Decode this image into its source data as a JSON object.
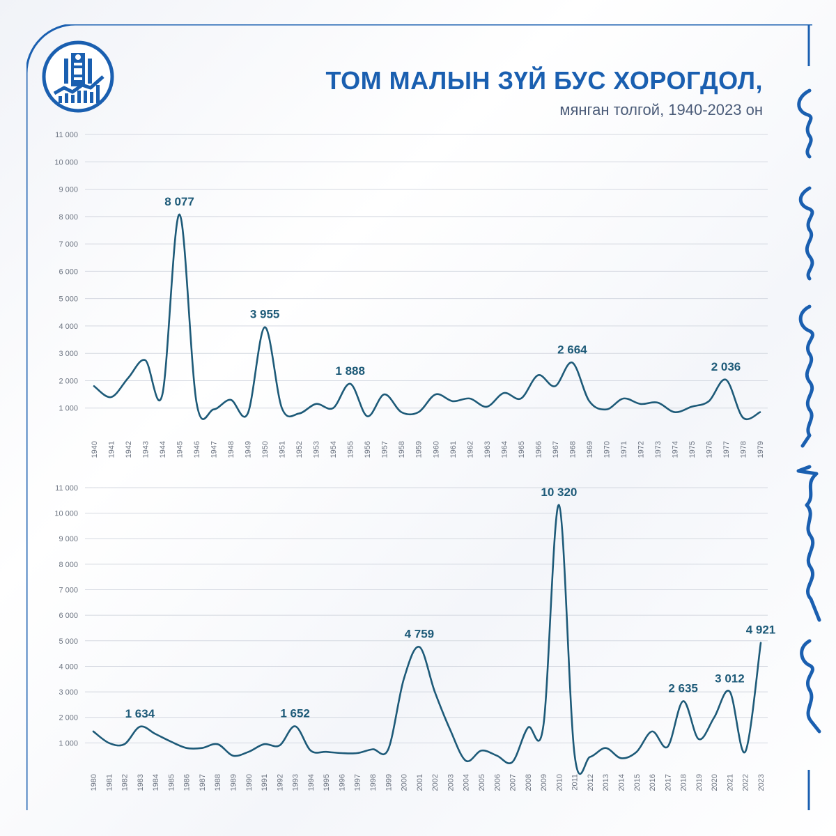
{
  "header": {
    "title": "ТОМ МАЛЫН ЗҮЙ БУС ХОРОГДОЛ,",
    "subtitle": "мянган толгой, 1940-2023 он"
  },
  "logo": {
    "icon": "state-emblem-growth-chart-icon"
  },
  "colors": {
    "line": "#1d5a78",
    "grid": "#d4d8e0",
    "tick": "#6b7380",
    "title": "#1a5fb0",
    "accent": "#1a5fb0"
  },
  "chart_data": [
    {
      "type": "line",
      "x": [
        "1940",
        "1941",
        "1942",
        "1943",
        "1944",
        "1945",
        "1946",
        "1947",
        "1948",
        "1949",
        "1950",
        "1951",
        "1952",
        "1953",
        "1954",
        "1955",
        "1956",
        "1957",
        "1958",
        "1959",
        "1960",
        "1961",
        "1962",
        "1963",
        "1964",
        "1965",
        "1966",
        "1967",
        "1968",
        "1969",
        "1970",
        "1971",
        "1972",
        "1973",
        "1974",
        "1975",
        "1976",
        "1977",
        "1978",
        "1979"
      ],
      "values": [
        1800,
        1400,
        2100,
        2750,
        1500,
        8077,
        1200,
        950,
        1300,
        800,
        3955,
        1000,
        800,
        1150,
        1000,
        1888,
        700,
        1500,
        850,
        850,
        1500,
        1250,
        1350,
        1050,
        1550,
        1350,
        2200,
        1800,
        2664,
        1250,
        950,
        1350,
        1150,
        1200,
        850,
        1050,
        1250,
        2036,
        650,
        850
      ],
      "ylim": [
        0,
        11000
      ],
      "yticks": [
        1000,
        2000,
        3000,
        4000,
        5000,
        6000,
        7000,
        8000,
        9000,
        10000,
        11000
      ],
      "ytick_labels": [
        "1 000",
        "2 000",
        "3 000",
        "4 000",
        "5 000",
        "6 000",
        "7 000",
        "8 000",
        "9 000",
        "10 000",
        "11 000"
      ],
      "annotations": [
        {
          "index": 5,
          "label": "8 077"
        },
        {
          "index": 10,
          "label": "3 955"
        },
        {
          "index": 15,
          "label": "1 888"
        },
        {
          "index": 28,
          "label": "2 664"
        },
        {
          "index": 37,
          "label": "2 036"
        }
      ],
      "grid": true
    },
    {
      "type": "line",
      "x": [
        "1980",
        "1981",
        "1982",
        "1983",
        "1984",
        "1985",
        "1986",
        "1987",
        "1988",
        "1989",
        "1990",
        "1991",
        "1992",
        "1993",
        "1994",
        "1995",
        "1996",
        "1997",
        "1998",
        "1999",
        "2000",
        "2001",
        "2002",
        "2003",
        "2004",
        "2005",
        "2006",
        "2007",
        "2008",
        "2009",
        "2010",
        "2011",
        "2012",
        "2013",
        "2014",
        "2015",
        "2016",
        "2017",
        "2018",
        "2019",
        "2020",
        "2021",
        "2022",
        "2023"
      ],
      "values": [
        1450,
        1000,
        950,
        1634,
        1350,
        1050,
        800,
        800,
        950,
        500,
        650,
        950,
        900,
        1652,
        700,
        650,
        600,
        600,
        750,
        750,
        3500,
        4759,
        3000,
        1500,
        300,
        700,
        500,
        250,
        1600,
        1700,
        10320,
        550,
        450,
        800,
        400,
        650,
        1450,
        850,
        2635,
        1150,
        2000,
        3012,
        650,
        4921
      ],
      "ylim": [
        0,
        11000
      ],
      "yticks": [
        1000,
        2000,
        3000,
        4000,
        5000,
        6000,
        7000,
        8000,
        9000,
        10000,
        11000
      ],
      "ytick_labels": [
        "1 000",
        "2 000",
        "3 000",
        "4 000",
        "5 000",
        "6 000",
        "7 000",
        "8 000",
        "9 000",
        "10 000",
        "11 000"
      ],
      "annotations": [
        {
          "index": 3,
          "label": "1 634"
        },
        {
          "index": 13,
          "label": "1 652"
        },
        {
          "index": 21,
          "label": "4 759"
        },
        {
          "index": 30,
          "label": "10 320"
        },
        {
          "index": 38,
          "label": "2 635"
        },
        {
          "index": 41,
          "label": "3 012"
        },
        {
          "index": 43,
          "label": "4 921"
        }
      ],
      "grid": true
    }
  ]
}
